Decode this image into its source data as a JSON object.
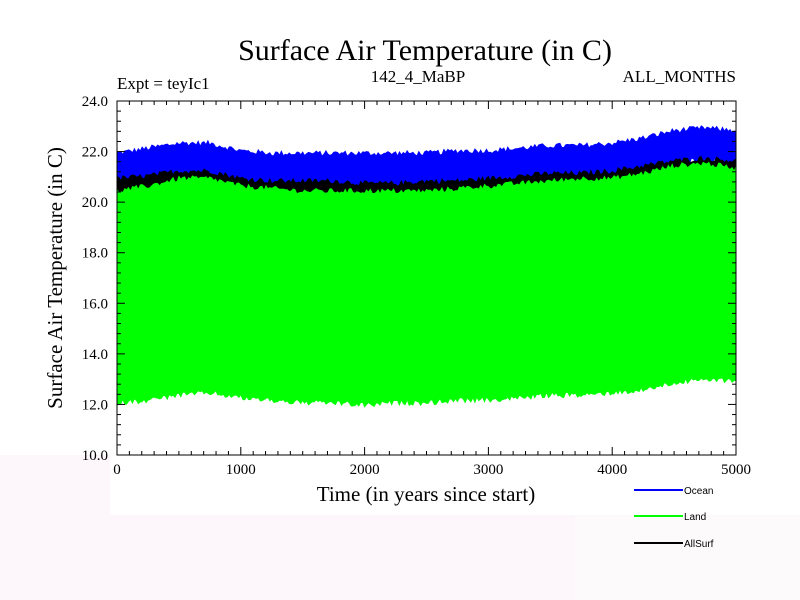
{
  "chart_data": {
    "type": "line",
    "title": "Surface Air Temperature (in C)",
    "subtitle_left": "Expt = teyIc1",
    "subtitle_center": "142_4_MaBP",
    "subtitle_right": "ALL_MONTHS",
    "xlabel": "Time (in years since start)",
    "ylabel": "Surface Air Temperature (in C)",
    "xlim": [
      0,
      5000
    ],
    "ylim": [
      10.0,
      24.0
    ],
    "xticks": [
      0,
      1000,
      2000,
      3000,
      4000,
      5000
    ],
    "yticks": [
      10.0,
      12.0,
      14.0,
      16.0,
      18.0,
      20.0,
      22.0,
      24.0
    ],
    "xtick_labels": [
      "0",
      "1000",
      "2000",
      "3000",
      "4000",
      "5000"
    ],
    "ytick_labels": [
      "10.0",
      "12.0",
      "14.0",
      "16.0",
      "18.0",
      "20.0",
      "22.0",
      "24.0"
    ],
    "grid": false,
    "legend_position": "bottom-right",
    "series": [
      {
        "name": "Ocean",
        "color": "#0000ff",
        "x": [
          0,
          250,
          500,
          750,
          1000,
          1250,
          1500,
          1750,
          2000,
          2250,
          2500,
          2750,
          3000,
          3250,
          3500,
          3750,
          4000,
          4250,
          4500,
          4750,
          5000
        ],
        "upper": [
          21.9,
          22.1,
          22.3,
          22.3,
          22.0,
          21.9,
          21.9,
          21.9,
          21.9,
          21.9,
          21.9,
          22.0,
          22.0,
          22.1,
          22.2,
          22.2,
          22.3,
          22.5,
          22.8,
          22.9,
          22.8
        ],
        "lower": [
          20.8,
          20.9,
          21.1,
          21.0,
          20.8,
          20.7,
          20.6,
          20.6,
          20.6,
          20.6,
          20.6,
          20.7,
          20.8,
          20.9,
          21.0,
          21.0,
          21.1,
          21.3,
          21.6,
          21.7,
          21.6
        ]
      },
      {
        "name": "Land",
        "color": "#00ff00",
        "x": [
          0,
          250,
          500,
          750,
          1000,
          1250,
          1500,
          1750,
          2000,
          2250,
          2500,
          2750,
          3000,
          3250,
          3500,
          3750,
          4000,
          4250,
          4500,
          4750,
          5000
        ],
        "upper": [
          20.4,
          20.6,
          20.9,
          20.9,
          20.6,
          20.5,
          20.4,
          20.4,
          20.4,
          20.4,
          20.4,
          20.5,
          20.6,
          20.7,
          20.8,
          20.9,
          20.9,
          21.1,
          21.4,
          21.5,
          21.3
        ],
        "lower": [
          12.1,
          12.2,
          12.4,
          12.5,
          12.3,
          12.2,
          12.1,
          12.1,
          12.0,
          12.1,
          12.1,
          12.2,
          12.2,
          12.3,
          12.4,
          12.4,
          12.5,
          12.6,
          12.9,
          13.0,
          13.0
        ]
      },
      {
        "name": "AllSurf",
        "color": "#000000",
        "x": [
          0,
          250,
          500,
          750,
          1000,
          1250,
          1500,
          1750,
          2000,
          2250,
          2500,
          2750,
          3000,
          3250,
          3500,
          3750,
          4000,
          4250,
          4500,
          4750,
          5000
        ],
        "upper": [
          20.9,
          21.0,
          21.2,
          21.2,
          20.9,
          20.8,
          20.8,
          20.8,
          20.7,
          20.7,
          20.8,
          20.8,
          20.9,
          21.0,
          21.1,
          21.1,
          21.2,
          21.4,
          21.6,
          21.7,
          21.6
        ],
        "lower": [
          20.3,
          20.4,
          20.6,
          20.6,
          20.3,
          20.2,
          20.2,
          20.2,
          20.1,
          20.1,
          20.2,
          20.2,
          20.3,
          20.4,
          20.5,
          20.5,
          20.6,
          20.8,
          21.0,
          21.1,
          21.0
        ]
      }
    ]
  }
}
